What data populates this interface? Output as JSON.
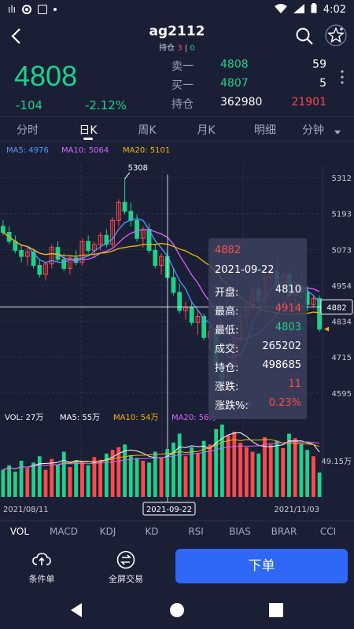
{
  "status_bar": {
    "time": "4:02"
  },
  "header": {
    "title": "ag2112",
    "position_label": "持仓",
    "position_long": "3",
    "separator": "|",
    "position_short": "0"
  },
  "quote": {
    "last_price": "4808",
    "change": "-104",
    "change_pct": "-2.12%",
    "order_book": [
      {
        "label": "卖一",
        "price": "4808",
        "qty": "59",
        "price_color": "#1fd18a",
        "qty_color": "#ffffff"
      },
      {
        "label": "买一",
        "price": "4807",
        "qty": "5",
        "price_color": "#1fd18a",
        "qty_color": "#ffffff"
      },
      {
        "label": "持仓",
        "price": "362980",
        "qty": "21901",
        "price_color": "#ffffff",
        "qty_color": "#ff4a4a"
      }
    ]
  },
  "tabs": [
    {
      "label": "分时"
    },
    {
      "label": "日K"
    },
    {
      "label": "周K"
    },
    {
      "label": "月K"
    },
    {
      "label": "明细"
    },
    {
      "label": "分钟"
    }
  ],
  "ma_legend": [
    {
      "label": "MA5: 4976",
      "color": "#4e9cff"
    },
    {
      "label": "MA10: 5064",
      "color": "#d865ff"
    },
    {
      "label": "MA20: 5101",
      "color": "#f5b800"
    }
  ],
  "chart_data": {
    "type": "candlestick",
    "price_axis_ticks": [
      "5312",
      "5193",
      "5073",
      "4954",
      "4834",
      "4715",
      "4595"
    ],
    "max_label": "5308",
    "min_label": "4595",
    "crosshair_price": "4882",
    "date_labels": [
      "2021/08/11",
      "2021-09-22",
      "2021/11/03"
    ],
    "volume_legend": [
      {
        "label": "VOL: 27万",
        "color": "#ffffff"
      },
      {
        "label": "MA5: 55万",
        "color": "#ffffff"
      },
      {
        "label": "MA10: 54万",
        "color": "#f5b800"
      },
      {
        "label": "MA20: 56万",
        "color": "#d865ff"
      }
    ],
    "volume_axis_label": "49.15万",
    "candles": [
      [
        5150,
        5170,
        5120,
        5130
      ],
      [
        5130,
        5150,
        5090,
        5100
      ],
      [
        5100,
        5120,
        5060,
        5070
      ],
      [
        5070,
        5090,
        5030,
        5050
      ],
      [
        5050,
        5080,
        5020,
        5065
      ],
      [
        5065,
        5075,
        5010,
        5020
      ],
      [
        5020,
        5040,
        4980,
        4990
      ],
      [
        4990,
        5030,
        4970,
        5025
      ],
      [
        5025,
        5090,
        5010,
        5080
      ],
      [
        5080,
        5100,
        5030,
        5040
      ],
      [
        5040,
        5060,
        5000,
        5010
      ],
      [
        5010,
        5050,
        4990,
        5045
      ],
      [
        5045,
        5070,
        5020,
        5030
      ],
      [
        5030,
        5110,
        5020,
        5100
      ],
      [
        5100,
        5120,
        5060,
        5070
      ],
      [
        5070,
        5100,
        5050,
        5090
      ],
      [
        5090,
        5130,
        5070,
        5120
      ],
      [
        5120,
        5140,
        5080,
        5090
      ],
      [
        5090,
        5180,
        5080,
        5170
      ],
      [
        5170,
        5240,
        5150,
        5230
      ],
      [
        5230,
        5308,
        5190,
        5200
      ],
      [
        5200,
        5230,
        5150,
        5170
      ],
      [
        5170,
        5190,
        5100,
        5110
      ],
      [
        5110,
        5150,
        5080,
        5140
      ],
      [
        5140,
        5160,
        5060,
        5070
      ],
      [
        5070,
        5090,
        5010,
        5020
      ],
      [
        5020,
        5060,
        4990,
        5050
      ],
      [
        5050,
        5070,
        4970,
        4980
      ],
      [
        4980,
        5010,
        4920,
        4930
      ],
      [
        4930,
        4960,
        4860,
        4870
      ],
      [
        4870,
        4900,
        4840,
        4880
      ],
      [
        4880,
        4900,
        4820,
        4830
      ],
      [
        4830,
        4870,
        4790,
        4850
      ],
      [
        4850,
        4860,
        4770,
        4780
      ],
      [
        4780,
        4820,
        4740,
        4800
      ],
      [
        4800,
        4810,
        4680,
        4690
      ],
      [
        4690,
        4700,
        4600,
        4620
      ],
      [
        4620,
        4700,
        4595,
        4690
      ],
      [
        4690,
        4780,
        4680,
        4770
      ],
      [
        4770,
        4860,
        4760,
        4850
      ],
      [
        4850,
        4900,
        4810,
        4880
      ],
      [
        4880,
        4950,
        4860,
        4940
      ],
      [
        4940,
        4960,
        4880,
        4900
      ],
      [
        4900,
        4990,
        4880,
        4980
      ],
      [
        4980,
        5020,
        4950,
        5000
      ],
      [
        5000,
        5040,
        4930,
        4950
      ],
      [
        4950,
        5000,
        4920,
        4990
      ],
      [
        4990,
        5010,
        4900,
        4920
      ],
      [
        4920,
        4960,
        4880,
        4950
      ],
      [
        4950,
        4990,
        4910,
        4930
      ],
      [
        4930,
        4950,
        4870,
        4890
      ],
      [
        4890,
        4920,
        4880,
        4910
      ],
      [
        4910,
        4920,
        4800,
        4808
      ]
    ],
    "volumes": [
      30,
      35,
      28,
      40,
      32,
      38,
      45,
      30,
      42,
      36,
      50,
      33,
      40,
      38,
      35,
      44,
      41,
      48,
      52,
      55,
      58,
      46,
      43,
      40,
      38,
      50,
      44,
      53,
      60,
      70,
      45,
      55,
      48,
      62,
      58,
      75,
      80,
      68,
      72,
      60,
      55,
      50,
      48,
      66,
      58,
      62,
      54,
      70,
      65,
      59,
      52,
      45,
      27
    ],
    "popup": {
      "price": "4882",
      "date": "2021-09-22",
      "rows": [
        {
          "label": "开盘:",
          "value": "4810",
          "color": "#ffffff"
        },
        {
          "label": "最高:",
          "value": "4914",
          "color": "#ff4a4a"
        },
        {
          "label": "最低:",
          "value": "4803",
          "color": "#1fd18a"
        },
        {
          "label": "成交:",
          "value": "265202",
          "color": "#ffffff"
        },
        {
          "label": "持仓:",
          "value": "498685",
          "color": "#ffffff"
        },
        {
          "label": "涨跌:",
          "value": "11",
          "color": "#ff4a4a"
        },
        {
          "label": "涨跌%:",
          "value": "0.23%",
          "color": "#ff4a4a"
        }
      ]
    }
  },
  "indicator_tabs": [
    "VOL",
    "MACD",
    "KDJ",
    "KD",
    "RSI",
    "BIAS",
    "BRAR",
    "CCI"
  ],
  "actions": {
    "conditional_order": "条件单",
    "fullscreen_trade": "全屏交易",
    "place_order": "下单"
  },
  "colors": {
    "up": "#ff4a4a",
    "down": "#1fd18a",
    "accent": "#2f67f6",
    "bg": "#1b1f36"
  }
}
